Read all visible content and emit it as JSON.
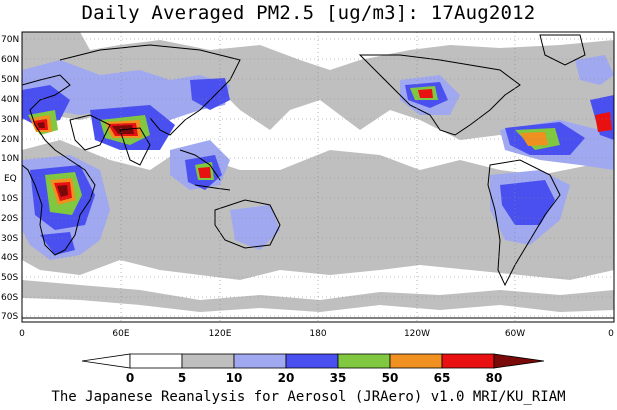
{
  "title": "Daily Averaged PM2.5 [ug/m3]: 17Aug2012",
  "footer": "The Japanese Reanalysis for Aerosol (JRAero) v1.0 MRI/KU_RIAM",
  "map": {
    "lat_labels": [
      "70N",
      "60N",
      "50N",
      "40N",
      "30N",
      "20N",
      "10N",
      "EQ",
      "10S",
      "20S",
      "30S",
      "40S",
      "50S",
      "60S",
      "70S"
    ],
    "lon_labels": [
      "0",
      "60E",
      "120E",
      "180",
      "120W",
      "60W",
      "0"
    ]
  },
  "colorbar": {
    "ticks": [
      "0",
      "5",
      "10",
      "20",
      "35",
      "50",
      "65",
      "80"
    ],
    "colors": [
      "#ffffff",
      "#bfbfbf",
      "#a0a8f0",
      "#4a50f0",
      "#80c840",
      "#f09020",
      "#e81010",
      "#7a0a0a"
    ]
  }
}
